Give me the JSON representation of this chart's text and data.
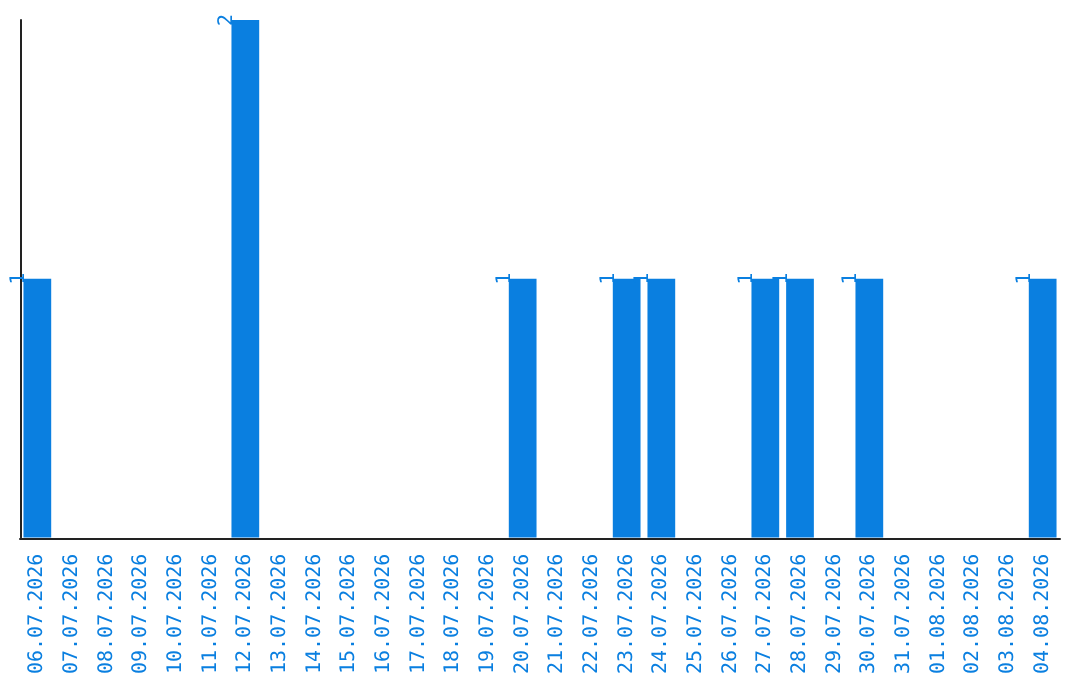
{
  "chart_data": {
    "type": "bar",
    "categories": [
      "06.07.2026",
      "07.07.2026",
      "08.07.2026",
      "09.07.2026",
      "10.07.2026",
      "11.07.2026",
      "12.07.2026",
      "13.07.2026",
      "14.07.2026",
      "15.07.2026",
      "16.07.2026",
      "17.07.2026",
      "18.07.2026",
      "19.07.2026",
      "20.07.2026",
      "21.07.2026",
      "22.07.2026",
      "23.07.2026",
      "24.07.2026",
      "25.07.2026",
      "26.07.2026",
      "27.07.2026",
      "28.07.2026",
      "29.07.2026",
      "30.07.2026",
      "31.07.2026",
      "01.08.2026",
      "02.08.2026",
      "03.08.2026",
      "04.08.2026"
    ],
    "values": [
      1,
      0,
      0,
      0,
      0,
      0,
      2,
      0,
      0,
      0,
      0,
      0,
      0,
      0,
      1,
      0,
      0,
      1,
      1,
      0,
      0,
      1,
      1,
      0,
      1,
      0,
      0,
      0,
      0,
      1
    ],
    "value_labels": [
      "1",
      null,
      null,
      null,
      null,
      null,
      "2",
      null,
      null,
      null,
      null,
      null,
      null,
      null,
      "1",
      null,
      null,
      "1",
      "1",
      null,
      null,
      "1",
      "1",
      null,
      "1",
      null,
      null,
      null,
      null,
      "1"
    ],
    "color": "#0a7fe0",
    "tick_labels": "x"
  }
}
